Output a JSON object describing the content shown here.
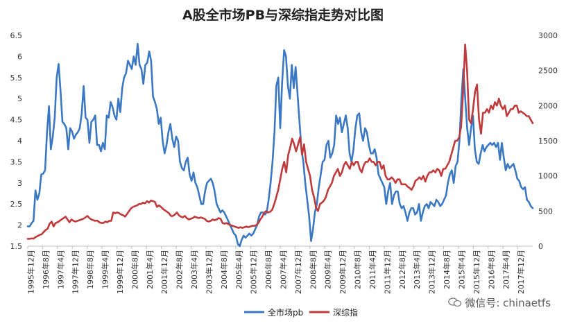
{
  "chart_data": {
    "type": "line",
    "title": "A股全市场PB与深综指走势对比图",
    "left_ylim": [
      1.5,
      6.5
    ],
    "left_yticks": [
      "1.5",
      "2",
      "2.5",
      "3",
      "3.5",
      "4",
      "4.5",
      "5",
      "5.5",
      "6",
      "6.5"
    ],
    "right_ylim": [
      0,
      3000
    ],
    "right_yticks": [
      "0",
      "500",
      "1000",
      "1500",
      "2000",
      "2500",
      "3000"
    ],
    "xtick_labels": [
      "1995年12月",
      "1996年8月",
      "1997年4月",
      "1997年12月",
      "1998年8月",
      "1999年4月",
      "1999年12月",
      "2000年8月",
      "2001年4月",
      "2001年12月",
      "2002年8月",
      "2003年4月",
      "2003年12月",
      "2004年8月",
      "2005年4月",
      "2005年12月",
      "2006年8月",
      "2007年4月",
      "2007年12月",
      "2008年8月",
      "2009年4月",
      "2009年12月",
      "2010年8月",
      "2011年4月",
      "2011年12月",
      "2012年8月",
      "2013年4月",
      "2013年12月",
      "2014年8月",
      "2015年4月",
      "2015年12月",
      "2016年8月",
      "2017年4月",
      "2017年12月"
    ],
    "grid": false,
    "legend_position": "bottom",
    "series": [
      {
        "name": "全市场pb",
        "axis": "left",
        "color": "#3b78c3",
        "values": [
          1.97,
          1.97,
          2.05,
          2.1,
          2.82,
          2.6,
          2.75,
          3.2,
          3.22,
          3.3,
          4.2,
          4.82,
          3.8,
          4.1,
          4.55,
          5.5,
          5.82,
          5.2,
          4.45,
          4.4,
          4.3,
          3.8,
          4.3,
          4.22,
          4.05,
          4.15,
          4.2,
          4.3,
          4.65,
          5.3,
          4.55,
          4.5,
          3.95,
          4.45,
          4.5,
          4.6,
          3.9,
          3.9,
          3.75,
          3.95,
          3.8,
          4.6,
          4.55,
          4.92,
          4.8,
          4.6,
          4.5,
          5.0,
          4.68,
          5.25,
          5.5,
          5.6,
          5.9,
          5.8,
          5.7,
          6.0,
          5.8,
          6.3,
          5.8,
          5.7,
          5.35,
          5.8,
          5.85,
          6.12,
          5.9,
          5.05,
          4.92,
          4.75,
          4.4,
          4.55,
          4.0,
          3.7,
          3.9,
          4.2,
          4.4,
          4.05,
          3.85,
          4.1,
          4.0,
          3.5,
          3.35,
          3.3,
          3.5,
          3.6,
          3.2,
          3.05,
          3.25,
          3.0,
          2.9,
          2.7,
          2.5,
          2.5,
          2.8,
          3.0,
          3.05,
          3.1,
          3.0,
          2.8,
          2.5,
          2.4,
          2.3,
          2.35,
          2.3,
          2.2,
          2.1,
          2.0,
          1.9,
          1.8,
          1.75,
          1.55,
          1.5,
          1.65,
          1.75,
          1.7,
          1.75,
          1.8,
          1.75,
          1.8,
          1.9,
          2.0,
          2.2,
          2.3,
          2.3,
          2.25,
          2.3,
          2.6,
          3.0,
          3.5,
          4.2,
          5.3,
          5.5,
          4.3,
          5.4,
          6.15,
          6.0,
          5.3,
          5.0,
          5.8,
          5.25,
          5.75,
          5.1,
          4.45,
          3.8,
          3.5,
          3.0,
          2.6,
          2.2,
          1.62,
          1.9,
          2.3,
          2.5,
          2.9,
          3.2,
          3.5,
          3.55,
          3.9,
          4.0,
          3.6,
          3.7,
          3.9,
          4.6,
          4.4,
          4.55,
          4.2,
          4.4,
          4.6,
          4.3,
          3.7,
          3.5,
          3.8,
          4.3,
          4.6,
          4.65,
          4.2,
          4.0,
          4.3,
          4.2,
          3.9,
          3.7,
          3.7,
          3.8,
          3.6,
          3.2,
          3.1,
          3.0,
          2.9,
          2.5,
          2.8,
          3.0,
          2.5,
          2.7,
          2.8,
          2.8,
          2.5,
          2.4,
          2.45,
          2.3,
          2.1,
          2.3,
          2.4,
          2.4,
          2.25,
          2.3,
          2.5,
          2.1,
          2.3,
          2.45,
          2.5,
          2.4,
          2.55,
          2.5,
          2.45,
          2.6,
          2.55,
          2.45,
          2.5,
          2.6,
          2.7,
          3.0,
          3.2,
          3.3,
          3.0,
          3.4,
          3.5,
          4.0,
          5.0,
          5.7,
          5.0,
          4.3,
          3.9,
          4.3,
          4.6,
          3.8,
          3.5,
          3.45,
          3.7,
          3.9,
          3.75,
          3.85,
          3.9,
          3.95,
          3.9,
          3.95,
          3.85,
          3.95,
          3.55,
          3.95,
          3.6,
          3.3,
          3.45,
          3.35,
          3.4,
          3.45,
          3.3,
          3.1,
          3.05,
          2.9,
          2.85,
          2.9,
          2.6,
          2.55,
          2.45,
          2.4
        ]
      },
      {
        "name": "深综指",
        "axis": "right",
        "color": "#c0393b",
        "values": [
          105,
          105,
          110,
          110,
          130,
          145,
          160,
          170,
          200,
          230,
          250,
          320,
          350,
          280,
          330,
          340,
          360,
          380,
          400,
          420,
          380,
          340,
          380,
          360,
          350,
          360,
          370,
          380,
          390,
          410,
          430,
          400,
          380,
          370,
          360,
          365,
          340,
          330,
          330,
          350,
          340,
          360,
          360,
          480,
          470,
          480,
          470,
          450,
          440,
          420,
          460,
          500,
          540,
          560,
          570,
          580,
          600,
          600,
          620,
          610,
          640,
          620,
          650,
          640,
          630,
          560,
          580,
          560,
          530,
          510,
          490,
          470,
          430,
          430,
          450,
          480,
          440,
          420,
          410,
          430,
          400,
          380,
          390,
          400,
          420,
          410,
          400,
          410,
          400,
          390,
          360,
          350,
          360,
          380,
          370,
          380,
          400,
          390,
          330,
          320,
          330,
          310,
          300,
          290,
          280,
          270,
          260,
          270,
          260,
          270,
          280,
          270,
          280,
          290,
          290,
          300,
          330,
          380,
          420,
          480,
          500,
          480,
          490,
          520,
          600,
          700,
          800,
          950,
          1100,
          1200,
          1050,
          1300,
          1400,
          1530,
          1450,
          1350,
          1450,
          1550,
          1300,
          1450,
          1200,
          1100,
          1000,
          800,
          700,
          550,
          500,
          600,
          620,
          650,
          700,
          800,
          850,
          900,
          1000,
          1050,
          1100,
          1000,
          1050,
          1150,
          1200,
          1150,
          1100,
          1200,
          1150,
          1200,
          1200,
          1100,
          1050,
          1150,
          1200,
          1200,
          1250,
          1200,
          1200,
          1150,
          1200,
          1200,
          1100,
          1150,
          1000,
          950,
          950,
          980,
          950,
          900,
          950,
          950,
          880,
          880,
          880,
          850,
          830,
          800,
          850,
          930,
          950,
          980,
          950,
          1000,
          920,
          1000,
          1050,
          1050,
          1080,
          1050,
          1100,
          1080,
          1000,
          1100,
          1100,
          1150,
          1200,
          1300,
          1400,
          1500,
          1500,
          1550,
          1700,
          2200,
          2870,
          2500,
          1800,
          1750,
          1950,
          2200,
          2300,
          1800,
          1600,
          1900,
          1900,
          1950,
          1900,
          2000,
          1950,
          2050,
          2000,
          2100,
          2000,
          1950,
          2000,
          1850,
          1900,
          1950,
          1950,
          2000,
          2000,
          1900,
          1920,
          1900,
          1880,
          1850,
          1850,
          1800,
          1750
        ]
      }
    ]
  },
  "watermark": "微信号: chinaetfs"
}
